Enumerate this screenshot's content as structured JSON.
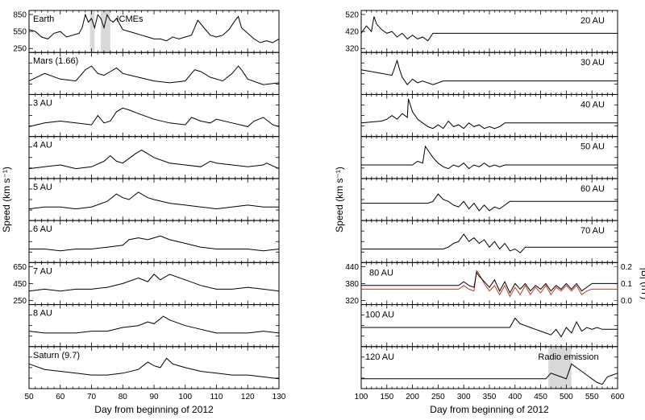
{
  "chart_data": [
    {
      "type": "line",
      "xlabel": "Day from beginning of 2012",
      "ylabel": "Speed (km s⁻¹)",
      "xlim": [
        50,
        130
      ],
      "xticks": [
        50,
        60,
        70,
        80,
        90,
        100,
        110,
        120,
        130
      ],
      "panels": [
        {
          "label": "Earth",
          "annotation": "ICMEs",
          "yticks": [
            "850",
            "550",
            "250"
          ],
          "shaded": [
            [
              69.5,
              71
            ],
            [
              73,
              76
            ]
          ],
          "x": [
            50,
            52,
            54,
            56,
            58,
            60,
            62,
            64,
            66,
            67,
            68,
            69,
            70,
            71,
            72,
            73,
            74,
            75,
            76,
            77,
            78,
            80,
            82,
            84,
            86,
            88,
            90,
            92,
            94,
            96,
            98,
            100,
            102,
            104,
            106,
            108,
            110,
            112,
            114,
            116,
            117,
            118,
            120,
            122,
            124,
            126,
            128,
            130
          ],
          "y": [
            0.55,
            0.5,
            0.35,
            0.3,
            0.45,
            0.5,
            0.35,
            0.4,
            0.45,
            0.6,
            0.95,
            0.75,
            0.85,
            0.6,
            0.95,
            0.85,
            0.6,
            0.95,
            0.8,
            0.75,
            0.85,
            0.55,
            0.5,
            0.45,
            0.4,
            0.35,
            0.3,
            0.3,
            0.25,
            0.35,
            0.3,
            0.35,
            0.4,
            0.8,
            0.6,
            0.4,
            0.35,
            0.4,
            0.55,
            0.8,
            0.9,
            0.6,
            0.45,
            0.3,
            0.2,
            0.25,
            0.2,
            0.3
          ]
        },
        {
          "label": "Mars (1.66)",
          "yticks": [],
          "x": [
            50,
            55,
            60,
            65,
            68,
            70,
            72,
            74,
            76,
            78,
            80,
            85,
            90,
            95,
            100,
            103,
            105,
            108,
            110,
            112,
            115,
            117,
            118,
            120,
            125,
            130
          ],
          "y": [
            0.3,
            0.5,
            0.35,
            0.3,
            0.6,
            0.7,
            0.5,
            0.45,
            0.55,
            0.65,
            0.5,
            0.4,
            0.3,
            0.25,
            0.3,
            0.6,
            0.55,
            0.4,
            0.35,
            0.3,
            0.5,
            0.7,
            0.6,
            0.35,
            0.2,
            0.25
          ]
        },
        {
          "label": "3 AU",
          "yticks": [],
          "x": [
            50,
            55,
            60,
            65,
            70,
            72,
            74,
            76,
            78,
            80,
            82,
            85,
            90,
            95,
            100,
            102,
            105,
            108,
            110,
            115,
            120,
            122,
            125,
            128,
            130
          ],
          "y": [
            0.2,
            0.3,
            0.35,
            0.3,
            0.25,
            0.5,
            0.3,
            0.35,
            0.6,
            0.7,
            0.65,
            0.55,
            0.4,
            0.3,
            0.25,
            0.45,
            0.35,
            0.3,
            0.4,
            0.3,
            0.2,
            0.35,
            0.45,
            0.25,
            0.2
          ]
        },
        {
          "label": "4 AU",
          "yticks": [],
          "x": [
            50,
            55,
            60,
            65,
            70,
            74,
            76,
            78,
            80,
            84,
            86,
            90,
            95,
            100,
            105,
            108,
            110,
            115,
            120,
            125,
            126,
            130
          ],
          "y": [
            0.2,
            0.25,
            0.3,
            0.2,
            0.25,
            0.4,
            0.55,
            0.4,
            0.35,
            0.6,
            0.7,
            0.5,
            0.35,
            0.3,
            0.25,
            0.4,
            0.35,
            0.3,
            0.25,
            0.3,
            0.35,
            0.2
          ]
        },
        {
          "label": "5 AU",
          "yticks": [],
          "x": [
            50,
            55,
            60,
            65,
            70,
            75,
            78,
            80,
            82,
            85,
            88,
            90,
            95,
            100,
            105,
            110,
            115,
            120,
            125,
            130
          ],
          "y": [
            0.25,
            0.3,
            0.3,
            0.25,
            0.3,
            0.45,
            0.65,
            0.55,
            0.5,
            0.7,
            0.55,
            0.5,
            0.4,
            0.35,
            0.3,
            0.25,
            0.3,
            0.35,
            0.3,
            0.3
          ]
        },
        {
          "label": "6 AU",
          "yticks": [],
          "x": [
            50,
            55,
            60,
            65,
            70,
            75,
            80,
            82,
            85,
            88,
            90,
            92,
            95,
            100,
            105,
            110,
            115,
            120,
            125,
            130
          ],
          "y": [
            0.3,
            0.3,
            0.25,
            0.3,
            0.3,
            0.35,
            0.4,
            0.55,
            0.6,
            0.55,
            0.6,
            0.65,
            0.55,
            0.45,
            0.35,
            0.3,
            0.3,
            0.3,
            0.25,
            0.3
          ]
        },
        {
          "label": "7 AU",
          "yticks": [
            "650",
            "450",
            "250"
          ],
          "x": [
            50,
            55,
            60,
            65,
            70,
            75,
            80,
            85,
            88,
            90,
            92,
            95,
            100,
            105,
            110,
            115,
            120,
            125,
            130
          ],
          "y": [
            0.3,
            0.35,
            0.3,
            0.35,
            0.35,
            0.4,
            0.5,
            0.65,
            0.55,
            0.75,
            0.6,
            0.75,
            0.6,
            0.45,
            0.35,
            0.35,
            0.4,
            0.35,
            0.3
          ]
        },
        {
          "label": "8 AU",
          "yticks": [],
          "x": [
            50,
            55,
            60,
            65,
            70,
            75,
            80,
            85,
            88,
            90,
            93,
            95,
            100,
            105,
            110,
            115,
            120,
            125,
            130
          ],
          "y": [
            0.35,
            0.3,
            0.3,
            0.3,
            0.35,
            0.35,
            0.45,
            0.5,
            0.6,
            0.55,
            0.75,
            0.65,
            0.5,
            0.4,
            0.3,
            0.3,
            0.3,
            0.35,
            0.3
          ]
        },
        {
          "label": "Saturn (9.7)",
          "yticks": [],
          "x": [
            50,
            55,
            60,
            65,
            70,
            75,
            80,
            85,
            88,
            90,
            92,
            94,
            96,
            98,
            100,
            105,
            110,
            115,
            120,
            125,
            130
          ],
          "y": [
            0.6,
            0.45,
            0.4,
            0.35,
            0.3,
            0.3,
            0.35,
            0.45,
            0.65,
            0.55,
            0.5,
            0.75,
            0.6,
            0.55,
            0.5,
            0.4,
            0.35,
            0.3,
            0.3,
            0.25,
            0.2
          ]
        }
      ]
    },
    {
      "type": "line",
      "xlabel": "Day from beginning of 2012",
      "ylabel": "Speed (km s⁻¹)",
      "xlim": [
        100,
        600
      ],
      "xticks": [
        100,
        150,
        200,
        250,
        300,
        350,
        400,
        450,
        500,
        550,
        600
      ],
      "panels": [
        {
          "label": "20 AU",
          "yticks": [
            "520",
            "420",
            "320"
          ],
          "x": [
            100,
            110,
            120,
            125,
            130,
            140,
            150,
            160,
            170,
            180,
            190,
            200,
            210,
            220,
            230,
            240,
            600
          ],
          "y": [
            0.45,
            0.65,
            0.5,
            0.9,
            0.7,
            0.55,
            0.45,
            0.5,
            0.35,
            0.45,
            0.3,
            0.4,
            0.3,
            0.35,
            0.25,
            0.45,
            0.45
          ]
        },
        {
          "label": "30 AU",
          "yticks": [],
          "x": [
            100,
            120,
            140,
            160,
            170,
            175,
            180,
            190,
            200,
            210,
            220,
            240,
            260,
            270,
            600
          ],
          "y": [
            0.6,
            0.55,
            0.5,
            0.45,
            0.85,
            0.6,
            0.4,
            0.2,
            0.35,
            0.25,
            0.3,
            0.2,
            0.3,
            0.3,
            0.3
          ]
        },
        {
          "label": "40 AU",
          "yticks": [],
          "x": [
            100,
            140,
            150,
            160,
            170,
            180,
            190,
            192,
            200,
            210,
            220,
            230,
            240,
            250,
            260,
            270,
            280,
            290,
            300,
            310,
            320,
            330,
            340,
            350,
            360,
            370,
            380,
            600
          ],
          "y": [
            0.3,
            0.35,
            0.4,
            0.5,
            0.4,
            0.55,
            0.45,
            0.95,
            0.6,
            0.4,
            0.3,
            0.2,
            0.15,
            0.25,
            0.15,
            0.35,
            0.2,
            0.25,
            0.15,
            0.3,
            0.2,
            0.25,
            0.15,
            0.2,
            0.15,
            0.2,
            0.3,
            0.3
          ]
        },
        {
          "label": "50 AU",
          "yticks": [],
          "x": [
            100,
            200,
            210,
            220,
            225,
            230,
            240,
            250,
            260,
            270,
            280,
            290,
            300,
            310,
            320,
            330,
            340,
            350,
            360,
            370,
            380,
            600
          ],
          "y": [
            0.3,
            0.3,
            0.4,
            0.35,
            0.8,
            0.7,
            0.5,
            0.35,
            0.25,
            0.2,
            0.3,
            0.25,
            0.35,
            0.2,
            0.3,
            0.25,
            0.35,
            0.25,
            0.3,
            0.25,
            0.3,
            0.3
          ]
        },
        {
          "label": "60 AU",
          "yticks": [],
          "x": [
            100,
            230,
            240,
            250,
            260,
            270,
            280,
            290,
            300,
            310,
            320,
            330,
            340,
            350,
            360,
            370,
            380,
            390,
            600
          ],
          "y": [
            0.4,
            0.4,
            0.45,
            0.65,
            0.5,
            0.45,
            0.35,
            0.3,
            0.45,
            0.25,
            0.4,
            0.2,
            0.35,
            0.2,
            0.3,
            0.25,
            0.35,
            0.45,
            0.45
          ]
        },
        {
          "label": "70 AU",
          "yticks": [],
          "x": [
            100,
            260,
            270,
            280,
            290,
            300,
            310,
            320,
            330,
            340,
            350,
            360,
            370,
            380,
            390,
            400,
            410,
            420,
            600
          ],
          "y": [
            0.3,
            0.3,
            0.35,
            0.45,
            0.5,
            0.7,
            0.5,
            0.6,
            0.45,
            0.55,
            0.35,
            0.5,
            0.3,
            0.45,
            0.25,
            0.3,
            0.2,
            0.35,
            0.35
          ]
        },
        {
          "label": "80 AU",
          "yticks": [
            "440",
            "380",
            "320"
          ],
          "y2label": "|B| (nT)",
          "y2ticks": [
            "0.2",
            "0.1",
            "0.0"
          ],
          "x": [
            100,
            290,
            300,
            310,
            320,
            325,
            330,
            340,
            350,
            360,
            370,
            380,
            390,
            400,
            410,
            420,
            430,
            440,
            450,
            460,
            470,
            480,
            490,
            500,
            510,
            520,
            530,
            540,
            550,
            600
          ],
          "y": [
            0.45,
            0.45,
            0.55,
            0.45,
            0.4,
            0.8,
            0.7,
            0.55,
            0.4,
            0.6,
            0.3,
            0.55,
            0.25,
            0.5,
            0.35,
            0.5,
            0.3,
            0.45,
            0.35,
            0.5,
            0.3,
            0.45,
            0.35,
            0.5,
            0.35,
            0.5,
            0.3,
            0.4,
            0.5,
            0.5
          ],
          "b_x": [
            100,
            290,
            300,
            310,
            320,
            325,
            330,
            340,
            350,
            360,
            370,
            380,
            390,
            400,
            410,
            420,
            430,
            440,
            450,
            460,
            470,
            480,
            490,
            500,
            510,
            520,
            530,
            540,
            550,
            600
          ],
          "b_y": [
            0.35,
            0.35,
            0.45,
            0.35,
            0.3,
            0.85,
            0.75,
            0.5,
            0.3,
            0.45,
            0.2,
            0.45,
            0.15,
            0.4,
            0.2,
            0.45,
            0.2,
            0.4,
            0.25,
            0.45,
            0.2,
            0.4,
            0.3,
            0.45,
            0.3,
            0.45,
            0.2,
            0.3,
            0.35,
            0.35
          ]
        },
        {
          "label": "100 AU",
          "yticks": [],
          "x": [
            100,
            390,
            400,
            410,
            420,
            430,
            440,
            450,
            460,
            470,
            480,
            490,
            500,
            510,
            520,
            530,
            540,
            550,
            560,
            570,
            580,
            590,
            600
          ],
          "y": [
            0.45,
            0.45,
            0.7,
            0.55,
            0.5,
            0.45,
            0.4,
            0.35,
            0.3,
            0.25,
            0.4,
            0.2,
            0.45,
            0.3,
            0.6,
            0.35,
            0.45,
            0.4,
            0.45,
            0.4,
            0.4,
            0.4,
            0.4
          ]
        },
        {
          "label": "120 AU",
          "annotation": "Radio emission",
          "yticks": [],
          "shaded": [
            [
              465,
              510
            ]
          ],
          "x": [
            100,
            460,
            470,
            480,
            490,
            500,
            510,
            520,
            530,
            540,
            550,
            560,
            570,
            580,
            590,
            600
          ],
          "y": [
            0.2,
            0.2,
            0.35,
            0.3,
            0.25,
            0.2,
            0.6,
            0.5,
            0.4,
            0.3,
            0.2,
            0.1,
            0.05,
            0.25,
            0.3,
            0.35
          ]
        }
      ]
    }
  ]
}
